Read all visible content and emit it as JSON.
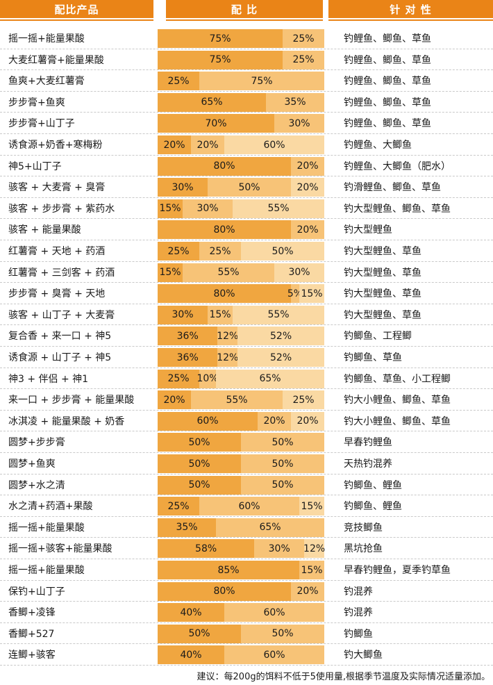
{
  "headers": {
    "product": "配比产品",
    "ratio": "配 比",
    "target": "针 对 性"
  },
  "colors": {
    "header": "#ea8417",
    "segment_dark": "#f0a640",
    "segment_mid": "#f7c377",
    "segment_light": "#fad9a3"
  },
  "rows": [
    {
      "product": "摇一摇+能量果酸",
      "ratios": [
        "75%",
        "25%"
      ],
      "target": "钓鲤鱼、鲫鱼、草鱼"
    },
    {
      "product": "大麦红薯膏+能量果酸",
      "ratios": [
        "75%",
        "25%"
      ],
      "target": "钓鲤鱼、鲫鱼、草鱼"
    },
    {
      "product": "鱼爽+大麦红薯膏",
      "ratios": [
        "25%",
        "75%"
      ],
      "target": "钓鲤鱼、鲫鱼、草鱼"
    },
    {
      "product": "步步膏+鱼爽",
      "ratios": [
        "65%",
        "35%"
      ],
      "target": "钓鲤鱼、鲫鱼、草鱼"
    },
    {
      "product": "步步膏+山丁子",
      "ratios": [
        "70%",
        "30%"
      ],
      "target": "钓鲤鱼、鲫鱼、草鱼"
    },
    {
      "product": "诱食源+奶香+寒梅粉",
      "ratios": [
        "20%",
        "20%",
        "60%"
      ],
      "target": "钓鲤鱼、大鲫鱼"
    },
    {
      "product": "神5+山丁子",
      "ratios": [
        "80%",
        "20%"
      ],
      "target": "钓鲤鱼、大鲫鱼（肥水）"
    },
    {
      "product": "骇客 + 大麦膏 + 臭膏",
      "ratios": [
        "30%",
        "50%",
        "20%"
      ],
      "target": "钓滑鲤鱼、鲫鱼、草鱼"
    },
    {
      "product": "骇客 + 步步膏 + 紫药水",
      "ratios": [
        "15%",
        "30%",
        "55%"
      ],
      "target": "钓大型鲤鱼、鲫鱼、草鱼"
    },
    {
      "product": "骇客 + 能量果酸",
      "ratios": [
        "80%",
        "20%"
      ],
      "target": "钓大型鲤鱼"
    },
    {
      "product": "红薯膏 + 天地 + 药酒",
      "ratios": [
        "25%",
        "25%",
        "50%"
      ],
      "target": "钓大型鲤鱼、草鱼"
    },
    {
      "product": "红薯膏 + 三剑客 + 药酒",
      "ratios": [
        "15%",
        "55%",
        "30%"
      ],
      "target": "钓大型鲤鱼、草鱼"
    },
    {
      "product": "步步膏 + 臭膏 + 天地",
      "ratios": [
        "80%",
        "5%",
        "15%"
      ],
      "target": "钓大型鲤鱼、草鱼"
    },
    {
      "product": "骇客 + 山丁子 + 大麦膏",
      "ratios": [
        "30%",
        "15%",
        "55%"
      ],
      "target": "钓大型鲤鱼、草鱼"
    },
    {
      "product": "复合香 + 来一口 + 神5",
      "ratios": [
        "36%",
        "12%",
        "52%"
      ],
      "target": "钓鲫鱼、工程鲫"
    },
    {
      "product": "诱食源 + 山丁子 + 神5",
      "ratios": [
        "36%",
        "12%",
        "52%"
      ],
      "target": "钓鲫鱼、草鱼"
    },
    {
      "product": "神3 + 伴侣 + 神1",
      "ratios": [
        "25%",
        "10%",
        "65%"
      ],
      "target": "钓鲫鱼、草鱼、小工程鲫"
    },
    {
      "product": "来一口 + 步步膏 + 能量果酸",
      "ratios": [
        "20%",
        "55%",
        "25%"
      ],
      "target": "钓大小鲤鱼、鲫鱼、草鱼"
    },
    {
      "product": "冰淇凌 + 能量果酸 + 奶香",
      "ratios": [
        "60%",
        "20%",
        "20%"
      ],
      "target": "钓大小鲤鱼、鲫鱼、草鱼"
    },
    {
      "product": "圆梦+步步膏",
      "ratios": [
        "50%",
        "50%"
      ],
      "target": "早春钓鲤鱼"
    },
    {
      "product": "圆梦+鱼爽",
      "ratios": [
        "50%",
        "50%"
      ],
      "target": "天热钓混养"
    },
    {
      "product": "圆梦+水之清",
      "ratios": [
        "50%",
        "50%"
      ],
      "target": "钓鲫鱼、鲤鱼"
    },
    {
      "product": "水之清+药酒+果酸",
      "ratios": [
        "25%",
        "60%",
        "15%"
      ],
      "target": "钓鲫鱼、鲤鱼"
    },
    {
      "product": "摇一摇+能量果酸",
      "ratios": [
        "35%",
        "65%"
      ],
      "target": "竞技鲫鱼"
    },
    {
      "product": "摇一摇+骇客+能量果酸",
      "ratios": [
        "58%",
        "30%",
        "12%"
      ],
      "target": "黑坑抢鱼"
    },
    {
      "product": "摇一摇+能量果酸",
      "ratios": [
        "85%",
        "15%"
      ],
      "target": "早春钓鲤鱼，夏季钓草鱼"
    },
    {
      "product": "保钓+山丁子",
      "ratios": [
        "80%",
        "20%"
      ],
      "target": "钓混养"
    },
    {
      "product": "香鲫+凌锋",
      "ratios": [
        "40%",
        "60%"
      ],
      "target": "钓混养"
    },
    {
      "product": "香鲫+527",
      "ratios": [
        "50%",
        "50%"
      ],
      "target": "钓鲫鱼"
    },
    {
      "product": "连鲫+骇客",
      "ratios": [
        "40%",
        "60%"
      ],
      "target": "钓大鲫鱼"
    }
  ],
  "note": "建议：每200g的饵料不低于5使用量,根据季节温度及实际情况适量添加。"
}
